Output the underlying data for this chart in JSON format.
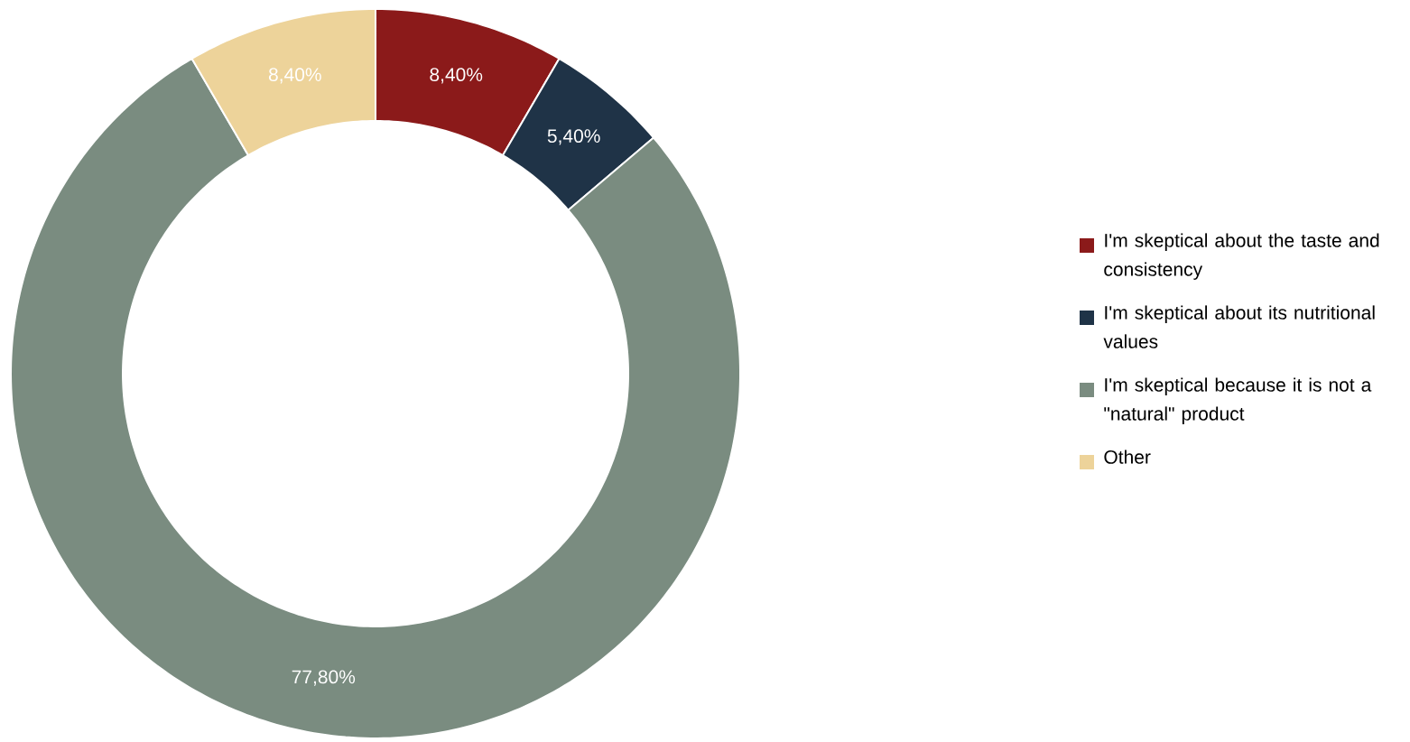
{
  "chart_data": {
    "type": "donut",
    "categories": [
      "I'm skeptical about the taste and consistency",
      "I'm skeptical about its nutritional values",
      "I'm skeptical because it is not a \"natural\" product",
      "Other"
    ],
    "values": [
      8.4,
      5.4,
      77.8,
      8.4
    ],
    "colors": [
      "#8b1a1a",
      "#1f3347",
      "#7a8c80",
      "#edd39a"
    ],
    "value_labels": [
      "8,40%",
      "5,40%",
      "77,80%",
      "8,40%"
    ],
    "legend": "right"
  }
}
